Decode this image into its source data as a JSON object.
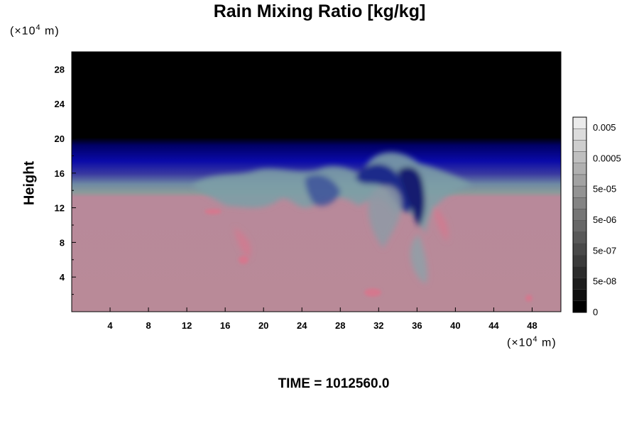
{
  "chart_data": {
    "type": "heatmap",
    "title": "Rain Mixing Ratio [kg/kg]",
    "xunit_prefix": "(×10",
    "xunit_exp": "4",
    "xunit_suffix": " m)",
    "yunit_prefix": "(×10",
    "yunit_exp": "4",
    "yunit_suffix": " m)",
    "ylabel": "Height",
    "xlim": [
      0,
      51
    ],
    "ylim": [
      0,
      30
    ],
    "xticks": [
      4,
      8,
      12,
      16,
      20,
      24,
      28,
      32,
      36,
      40,
      44,
      48
    ],
    "yticks": [
      4,
      8,
      12,
      16,
      20,
      24,
      28
    ],
    "colorbar": {
      "labels": [
        "0.005",
        "0.0005",
        "5e-05",
        "5e-06",
        "5e-07",
        "5e-08",
        "0"
      ],
      "levels": 17
    },
    "time_label": "TIME = 1012560.0"
  }
}
